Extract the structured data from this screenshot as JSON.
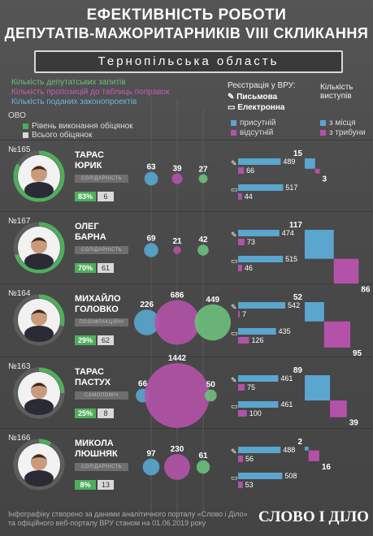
{
  "title_line1": "ЕФЕКТИВНІСТЬ РОБОТИ",
  "title_line2": "ДЕПУТАТІВ-МАЖОРИТАРНИКІВ VIII СКЛИКАННЯ",
  "region": "Тернопільська область",
  "legend": {
    "requests": "Кількість депутатських запитів",
    "proposals": "Кількість пропозицій до таблиць поправок",
    "bills": "Кількість поданих законопроектів",
    "ovo": "ОВО",
    "promise_level": "Рівень виконання обіцянок",
    "promise_total": "Всього обіцянок",
    "reg_title": "Реєстрація у ВРУ:",
    "reg_written": "Письмова",
    "reg_electronic": "Електронна",
    "present": "присутній",
    "absent": "відсутній",
    "speeches_title": "Кількість виступів",
    "from_seat": "з місця",
    "from_tribune": "з трибуни"
  },
  "colors": {
    "green": "#4fae5c",
    "pink": "#b352a8",
    "blue": "#5aa6cf",
    "light_green": "#6cbf7a",
    "grey": "#d9d9d9"
  },
  "chart_data": {
    "type": "table",
    "deputies": [
      {
        "district": "№165",
        "name1": "ТАРАС",
        "name2": "ЮРИК",
        "party": "СОЛІДАРНІСТЬ",
        "promise_pct": "83%",
        "promise_total": 6,
        "requests": 63,
        "proposals": 39,
        "bills": 27,
        "written_present": 489,
        "written_absent": 66,
        "electronic_present": 517,
        "electronic_absent": 44,
        "from_seat": 15,
        "from_tribune": 3
      },
      {
        "district": "№167",
        "name1": "ОЛЕГ",
        "name2": "БАРНА",
        "party": "СОЛІДАРНІСТЬ",
        "promise_pct": "70%",
        "promise_total": 61,
        "requests": 69,
        "proposals": 21,
        "bills": 42,
        "written_present": 474,
        "written_absent": 73,
        "electronic_present": 515,
        "electronic_absent": 46,
        "from_seat": 117,
        "from_tribune": 86
      },
      {
        "district": "№164",
        "name1": "МИХАЙЛО",
        "name2": "ГОЛОВКО",
        "party": "ПОЗАФРАКЦІЙНІ",
        "promise_pct": "29%",
        "promise_total": 62,
        "requests": 226,
        "proposals": 686,
        "bills": 449,
        "written_present": 542,
        "written_absent": 7,
        "electronic_present": 435,
        "electronic_absent": 126,
        "from_seat": 52,
        "from_tribune": 95
      },
      {
        "district": "№163",
        "name1": "ТАРАС",
        "name2": "ПАСТУХ",
        "party": "САМОПОМІЧ",
        "promise_pct": "25%",
        "promise_total": 8,
        "requests": 66,
        "proposals": 1442,
        "bills": 50,
        "written_present": 461,
        "written_absent": 75,
        "electronic_present": 461,
        "electronic_absent": 100,
        "from_seat": 89,
        "from_tribune": 39
      },
      {
        "district": "№166",
        "name1": "МИКОЛА",
        "name2": "ЛЮШНЯК",
        "party": "СОЛІДАРНІСТЬ",
        "promise_pct": "8%",
        "promise_total": 13,
        "requests": 97,
        "proposals": 230,
        "bills": 61,
        "written_present": 488,
        "written_absent": 56,
        "electronic_present": 508,
        "electronic_absent": 53,
        "from_seat": 2,
        "from_tribune": 16
      }
    ]
  },
  "footer_line1": "Інфографіку створено за даними аналітичного порталу «Слово і Діло»",
  "footer_line2": "та офіційного веб-порталу ВРУ станом на 01.06.2019 року",
  "logo": "СЛОВО І ДІЛО"
}
